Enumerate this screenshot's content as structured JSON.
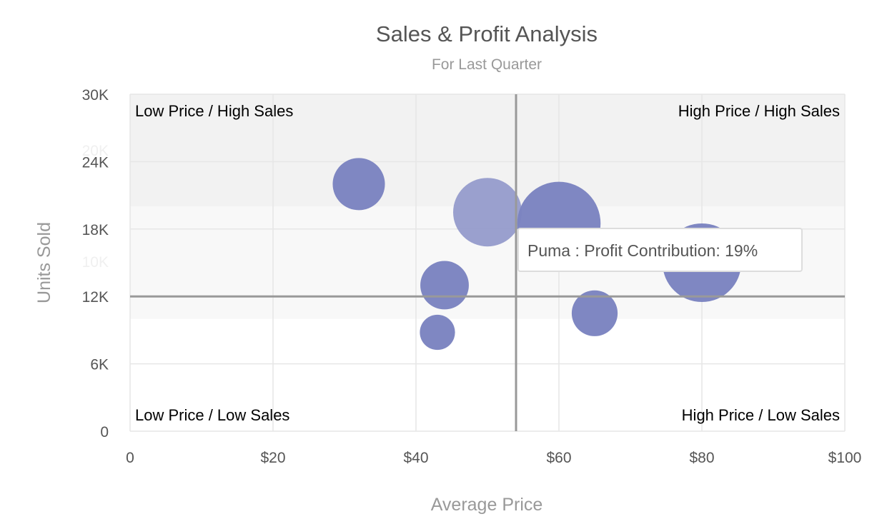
{
  "chart_data": {
    "type": "bubble",
    "title": "Sales & Profit Analysis",
    "subtitle": "For Last Quarter",
    "xlabel": "Average Price",
    "ylabel": "Units Sold",
    "xlim": [
      0,
      100
    ],
    "ylim": [
      0,
      30000
    ],
    "x_ticks": [
      "0",
      "$20",
      "$40",
      "$60",
      "$80",
      "$100"
    ],
    "x_tick_values": [
      0,
      20,
      40,
      60,
      80,
      100
    ],
    "y_ticks": [
      "0",
      "6K",
      "12K",
      "18K",
      "24K",
      "30K"
    ],
    "y_tick_values": [
      0,
      6000,
      12000,
      18000,
      24000,
      30000
    ],
    "grid": true,
    "bands": [
      {
        "from": 20000,
        "to": 30000,
        "label": "20K",
        "color": "#f2f2f2"
      },
      {
        "from": 10000,
        "to": 20000,
        "label": "10K",
        "color": "#f8f8f8"
      }
    ],
    "quadrant_lines": {
      "x": 54,
      "y": 12000
    },
    "quadrant_labels": {
      "top_left": "Low Price / High Sales",
      "top_right": "High Price / High Sales",
      "bottom_left": "Low Price / Low Sales",
      "bottom_right": "High Price / Low Sales"
    },
    "bubble_color": "#7b83c0",
    "hover_color": "#959bcb",
    "points": [
      {
        "x": 32,
        "y": 22000,
        "z": 11
      },
      {
        "name": "Puma",
        "x": 50,
        "y": 19500,
        "z": 19,
        "hovered": true
      },
      {
        "x": 60,
        "y": 18500,
        "z": 28
      },
      {
        "x": 80,
        "y": 15000,
        "z": 25
      },
      {
        "x": 44,
        "y": 13000,
        "z": 9.5
      },
      {
        "x": 43,
        "y": 8800,
        "z": 5
      },
      {
        "x": 65,
        "y": 10500,
        "z": 8.5
      }
    ],
    "tooltip": "Puma : Profit Contribution: 19%"
  }
}
